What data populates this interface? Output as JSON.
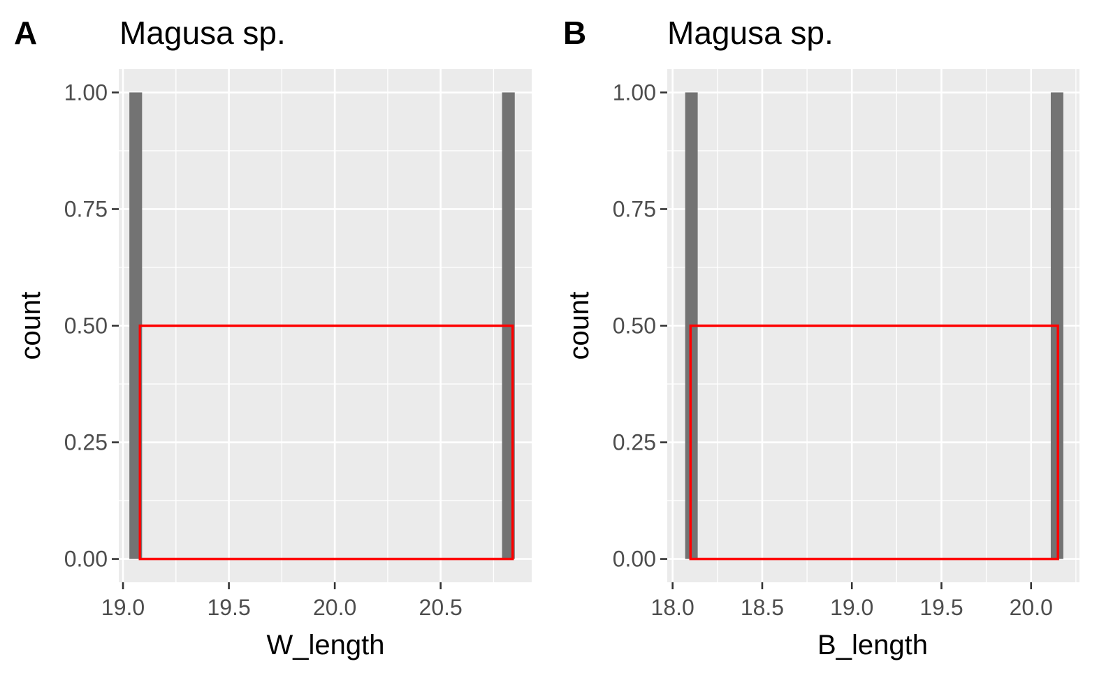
{
  "chart_data": [
    {
      "type": "bar",
      "panel_label": "A",
      "title": "Magusa sp.",
      "xlabel": "W_length",
      "ylabel": "count",
      "xlim": [
        18.98,
        20.93
      ],
      "ylim": [
        -0.05,
        1.05
      ],
      "xticks": [
        19.0,
        19.5,
        20.0,
        20.5
      ],
      "xtick_labels": [
        "19.0",
        "19.5",
        "20.0",
        "20.5"
      ],
      "yticks": [
        0,
        0.25,
        0.5,
        0.75,
        1.0
      ],
      "ytick_labels": [
        "0.00",
        "0.25",
        "0.50",
        "0.75",
        "1.00"
      ],
      "grid": true,
      "bars": [
        {
          "x0": 19.03,
          "x1": 19.09,
          "count": 1
        },
        {
          "x0": 20.79,
          "x1": 20.85,
          "count": 1
        }
      ],
      "highlight_rect": {
        "x0": 19.08,
        "x1": 20.84,
        "y0": 0,
        "y1": 0.5,
        "color": "#ff0000"
      },
      "bar_color": "#737373",
      "panel_bg": "#ebebeb"
    },
    {
      "type": "bar",
      "panel_label": "B",
      "title": "Magusa sp.",
      "xlabel": "B_length",
      "ylabel": "count",
      "xlim": [
        17.97,
        20.27
      ],
      "ylim": [
        -0.05,
        1.05
      ],
      "xticks": [
        18.0,
        18.5,
        19.0,
        19.5,
        20.0
      ],
      "xtick_labels": [
        "18.0",
        "18.5",
        "19.0",
        "19.5",
        "20.0"
      ],
      "yticks": [
        0,
        0.25,
        0.5,
        0.75,
        1.0
      ],
      "ytick_labels": [
        "0.00",
        "0.25",
        "0.50",
        "0.75",
        "1.00"
      ],
      "grid": true,
      "bars": [
        {
          "x0": 18.07,
          "x1": 18.14,
          "count": 1
        },
        {
          "x0": 20.11,
          "x1": 20.18,
          "count": 1
        }
      ],
      "highlight_rect": {
        "x0": 18.1,
        "x1": 20.15,
        "y0": 0,
        "y1": 0.5,
        "color": "#ff0000"
      },
      "bar_color": "#737373",
      "panel_bg": "#ebebeb"
    }
  ]
}
